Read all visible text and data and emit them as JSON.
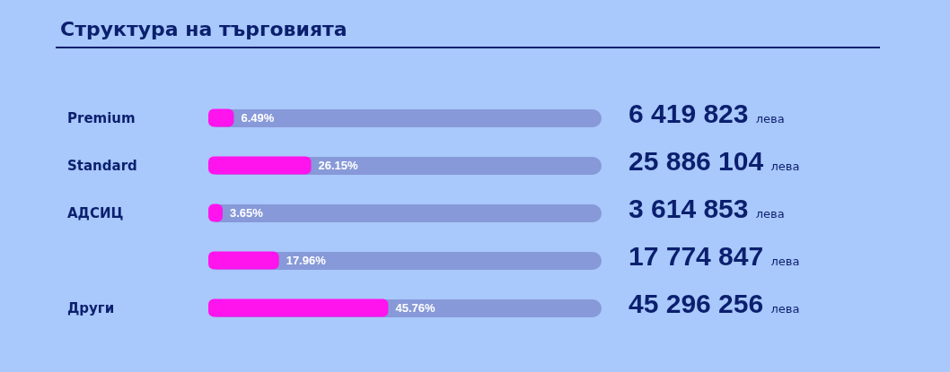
{
  "chart_data": {
    "type": "bar",
    "orientation": "horizontal",
    "title": "Структура на търговията",
    "categories": [
      "Premium",
      "Standard",
      "АДСИЦ",
      null,
      "Други"
    ],
    "values": [
      6.49,
      26.15,
      3.65,
      17.96,
      45.76
    ],
    "value_labels": [
      "6.49%",
      "26.15%",
      "3.65%",
      "17.96%",
      "45.76%"
    ],
    "color": "#ff14ee",
    "xlim": [
      0,
      100
    ],
    "tick_labels": "y",
    "grid": false,
    "annotations": [
      "6 419 823 лева",
      "25 886 104 лева",
      "3 614 853 лева",
      "17 774 847 лева",
      "45 296 256 лева"
    ]
  }
}
